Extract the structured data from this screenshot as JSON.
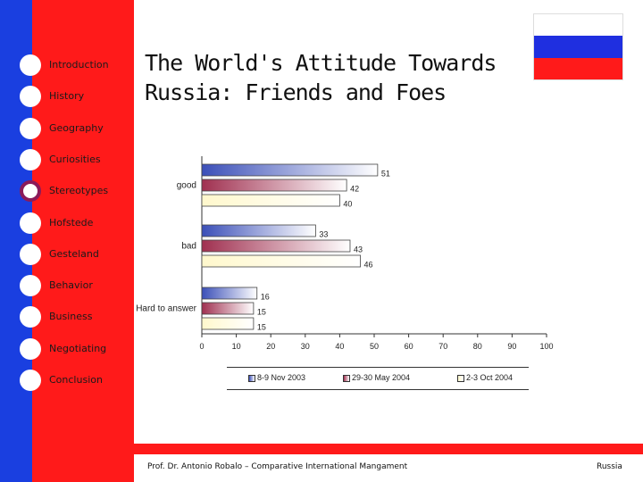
{
  "nav": {
    "items": [
      {
        "label": "Introduction",
        "active": false
      },
      {
        "label": "History",
        "active": false
      },
      {
        "label": "Geography",
        "active": false
      },
      {
        "label": "Curiosities",
        "active": false
      },
      {
        "label": "Stereotypes",
        "active": true
      },
      {
        "label": "Hofstede",
        "active": false
      },
      {
        "label": "Gesteland",
        "active": false
      },
      {
        "label": "Behavior",
        "active": false
      },
      {
        "label": "Business",
        "active": false
      },
      {
        "label": "Negotiating",
        "active": false
      },
      {
        "label": "Conclusion",
        "active": false
      }
    ]
  },
  "slide": {
    "title_line1": "The World's Attitude Towards",
    "title_line2": "Russia: Friends and Foes"
  },
  "footer": {
    "left": "Prof. Dr. Antonio Robalo – Comparative International Mangament",
    "right": "Russia"
  },
  "colors": {
    "blue_strip": "#1a3fe0",
    "red_panel": "#ff1a1a",
    "flag_white": "#ffffff",
    "flag_blue": "#1f2fe0",
    "flag_red": "#ff1a1a",
    "series_1": "#3b4fb8",
    "series_2": "#a03050",
    "series_3": "#fff8cc"
  },
  "chart_data": {
    "type": "bar",
    "orientation": "horizontal",
    "categories": [
      "good",
      "bad",
      "Hard to answer"
    ],
    "series": [
      {
        "name": "8-9 Nov 2003",
        "values": [
          51,
          33,
          16
        ]
      },
      {
        "name": "29-30 May 2004",
        "values": [
          42,
          43,
          15
        ]
      },
      {
        "name": "2-3 Oct 2004",
        "values": [
          40,
          46,
          15
        ]
      }
    ],
    "xlim": [
      0,
      100
    ],
    "x_ticks": [
      0,
      10,
      20,
      30,
      40,
      50,
      60,
      70,
      80,
      90,
      100
    ],
    "grid": false,
    "legend_position": "bottom"
  }
}
